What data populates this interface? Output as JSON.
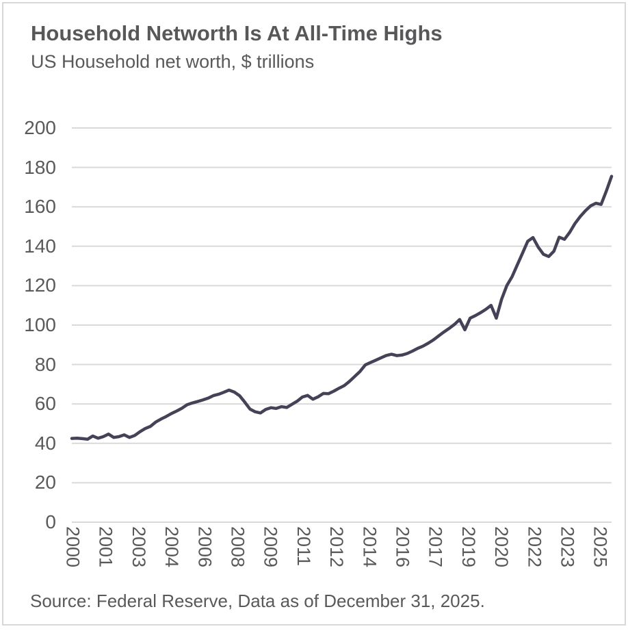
{
  "header": {
    "title": "Household Networth Is At All-Time Highs",
    "subtitle": "US Household net worth, $ trillions"
  },
  "footer": {
    "source": "Source: Federal Reserve, Data as of December 31, 2025."
  },
  "colors": {
    "line": "#454157",
    "grid": "#d9d9d9",
    "text": "#595959",
    "title_text": "#58585a",
    "card_border": "#d8d8d8"
  },
  "chart_data": {
    "type": "line",
    "title": "Household Networth Is At All-Time Highs",
    "subtitle": "US Household net worth, $ trillions",
    "xlabel": "",
    "ylabel": "",
    "ylim": [
      0,
      200
    ],
    "ytick_step": 20,
    "y_ticks": [
      0,
      20,
      40,
      60,
      80,
      100,
      120,
      140,
      160,
      180,
      200
    ],
    "x_tick_labels": [
      "2000",
      "2001",
      "2003",
      "2004",
      "2006",
      "2008",
      "2009",
      "2011",
      "2012",
      "2014",
      "2016",
      "2017",
      "2019",
      "2020",
      "2022",
      "2023",
      "2025"
    ],
    "grid": "horizontal",
    "legend": "none",
    "frequency": "quarterly",
    "x_start": "2000Q1",
    "x_end": "2025Q4",
    "series": [
      {
        "name": "US household net worth ($ trillions)",
        "values": [
          42.5,
          42.6,
          42.4,
          42.1,
          43.7,
          42.6,
          43.4,
          44.7,
          43.0,
          43.4,
          44.3,
          43.0,
          44.0,
          45.9,
          47.5,
          48.6,
          50.8,
          52.3,
          53.6,
          55.1,
          56.4,
          57.8,
          59.6,
          60.5,
          61.2,
          62.0,
          62.9,
          64.2,
          64.9,
          65.9,
          67.0,
          66.0,
          64.2,
          60.9,
          57.4,
          56.0,
          55.4,
          57.2,
          58.1,
          57.7,
          58.6,
          58.2,
          59.8,
          61.4,
          63.5,
          64.3,
          62.4,
          63.6,
          65.3,
          65.2,
          66.5,
          68.0,
          69.3,
          71.5,
          74.0,
          76.5,
          79.8,
          81.0,
          82.2,
          83.4,
          84.6,
          85.2,
          84.5,
          84.8,
          85.6,
          86.8,
          88.2,
          89.3,
          90.8,
          92.5,
          94.5,
          96.5,
          98.3,
          100.3,
          102.8,
          97.6,
          103.5,
          104.8,
          106.3,
          108.0,
          110.0,
          103.5,
          113.0,
          120.0,
          124.5,
          130.5,
          136.5,
          142.5,
          144.4,
          139.5,
          135.9,
          134.8,
          137.5,
          144.6,
          143.5,
          147.0,
          151.5,
          155.0,
          158.0,
          160.5,
          161.8,
          161.2,
          168.0,
          175.5
        ]
      }
    ]
  }
}
